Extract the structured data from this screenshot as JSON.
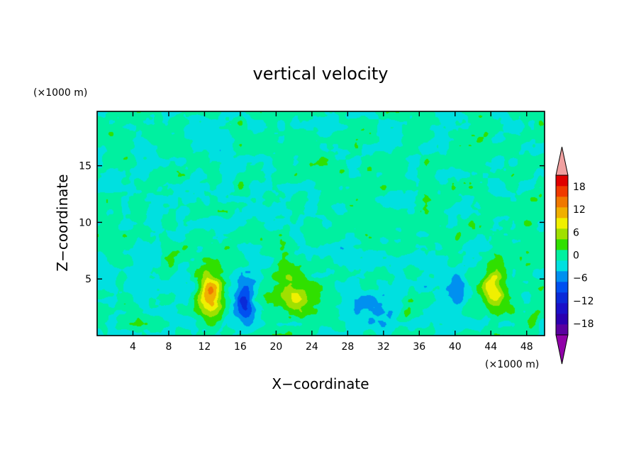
{
  "chart_data": {
    "type": "heatmap",
    "title": "vertical velocity",
    "xlabel": "X−coordinate",
    "ylabel": "Z−coordinate",
    "x_unit": "(×1000 m)",
    "y_unit": "(×1000 m)",
    "xlim": [
      0,
      50
    ],
    "ylim": [
      0,
      19.8
    ],
    "x_ticks": [
      4,
      8,
      12,
      16,
      20,
      24,
      28,
      32,
      36,
      40,
      44,
      48
    ],
    "y_ticks": [
      5,
      10,
      15
    ],
    "x_tick_labels": [
      "4",
      "8",
      "12",
      "16",
      "20",
      "24",
      "28",
      "32",
      "36",
      "40",
      "44",
      "48"
    ],
    "y_tick_labels": [
      "5",
      "10",
      "15"
    ],
    "background_value": 0.5,
    "features": [
      {
        "label": "updraft",
        "x": 12.6,
        "z": 3.8,
        "sx": 1.6,
        "sz": 2.1,
        "peak": 13
      },
      {
        "label": "updraft",
        "x": 22.0,
        "z": 3.6,
        "sx": 2.0,
        "sz": 1.9,
        "peak": 8
      },
      {
        "label": "updraft",
        "x": 44.2,
        "z": 4.2,
        "sx": 1.2,
        "sz": 1.9,
        "peak": 11
      },
      {
        "label": "updraft",
        "x": 2.7,
        "z": 5.0,
        "sx": 0.6,
        "sz": 0.9,
        "peak": 4
      },
      {
        "label": "updraft",
        "x": 34.5,
        "z": 2.0,
        "sx": 0.6,
        "sz": 0.8,
        "peak": 4
      },
      {
        "label": "updraft",
        "x": 48.8,
        "z": 1.6,
        "sx": 0.6,
        "sz": 0.9,
        "peak": 4
      },
      {
        "label": "downdraft",
        "x": 16.5,
        "z": 3.0,
        "sx": 1.1,
        "sz": 2.2,
        "peak": -9
      },
      {
        "label": "downdraft",
        "x": 9.5,
        "z": 4.0,
        "sx": 1.6,
        "sz": 1.4,
        "peak": -4
      },
      {
        "label": "downdraft",
        "x": 30.5,
        "z": 2.6,
        "sx": 2.2,
        "sz": 1.6,
        "peak": -5
      },
      {
        "label": "downdraft",
        "x": 40.5,
        "z": 4.2,
        "sx": 1.2,
        "sz": 1.4,
        "peak": -5
      },
      {
        "label": "downdraft",
        "x": 1.8,
        "z": 1.8,
        "sx": 0.9,
        "sz": 1.0,
        "peak": -3
      }
    ],
    "colorbar": {
      "tick_values": [
        18,
        12,
        6,
        0,
        -6,
        -12,
        -18
      ],
      "tick_labels": [
        "18",
        "12",
        "6",
        "0",
        "−6",
        "−12",
        "−18"
      ],
      "levels": [
        -21,
        -18,
        -15,
        -12,
        -9,
        -6,
        -3,
        0,
        3,
        6,
        9,
        12,
        15,
        18,
        21
      ],
      "colors": [
        "#5a00a0",
        "#2b00b0",
        "#1a10c8",
        "#0a2ad8",
        "#0050f0",
        "#0090f0",
        "#00e0e0",
        "#00f0a0",
        "#30e000",
        "#a0e000",
        "#f0f000",
        "#f0b000",
        "#f07800",
        "#f03a00",
        "#e00000"
      ],
      "under_color": "#9000a8",
      "over_color": "#f0a0a0"
    }
  }
}
